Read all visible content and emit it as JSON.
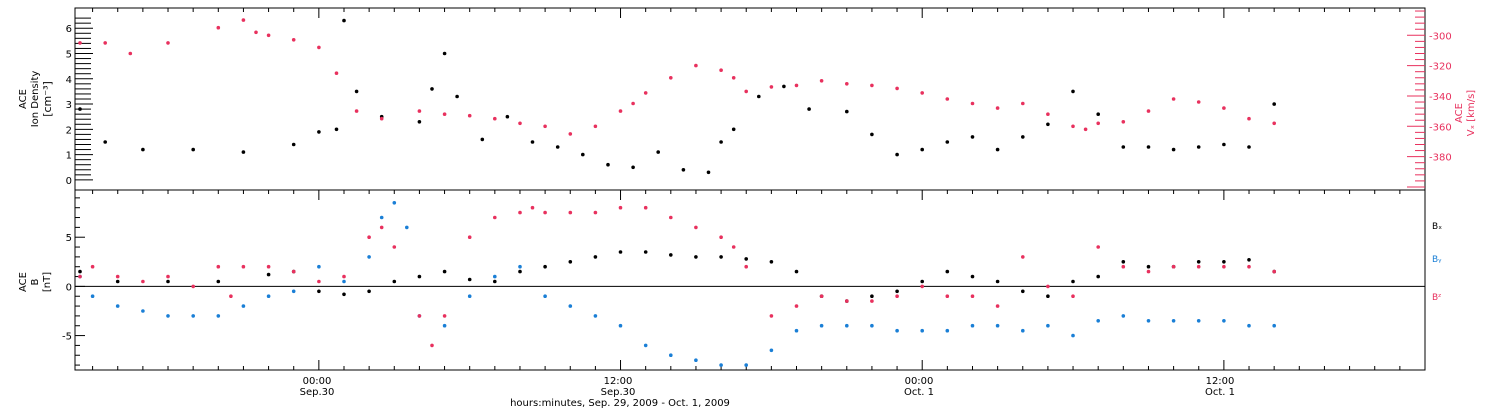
{
  "colors": {
    "density": "#000000",
    "speed": "#e8315e",
    "bx": "#000000",
    "by": "#1a7fd6",
    "bz": "#e8315e"
  },
  "x_axis": {
    "ticks": [
      {
        "time": "00:00",
        "date": "Sep.30"
      },
      {
        "time": "12:00",
        "date": "Sep.30"
      },
      {
        "time": "00:00",
        "date": "Oct. 1"
      },
      {
        "time": "12:00",
        "date": "Oct. 1"
      }
    ],
    "label": "hours:minutes, Sep. 29, 2009 - Oct.  1, 2009"
  },
  "chart_data": [
    {
      "type": "scatter",
      "panel": "top",
      "ylabel_left": [
        "ACE",
        "Ion Density",
        "[cm⁻³]"
      ],
      "ylabel_right": [
        "ACE",
        "Vₓ [km/s]"
      ],
      "xlim_hours": [
        -9.7,
        44
      ],
      "left_axis": {
        "ylim": [
          -0.4,
          6.8
        ],
        "ticks": [
          0,
          1,
          2,
          3,
          4,
          5,
          6
        ]
      },
      "right_axis": {
        "ylim": [
          -402,
          -282
        ],
        "ticks": [
          -300,
          -320,
          -340,
          -360,
          -380
        ]
      },
      "series": [
        {
          "axis": "left",
          "color": "#000000",
          "x": [
            -9.5,
            -8.5,
            -7,
            -5,
            -3,
            -1,
            0,
            0.7,
            1,
            1.5,
            2.5,
            4,
            4.5,
            5,
            5.5,
            6.5,
            7.5,
            8.5,
            9.5,
            10.5,
            11.5,
            12.5,
            13.5,
            14.5,
            15.5,
            16,
            16.5,
            17.5,
            18.5,
            19.5,
            21,
            22,
            23,
            24,
            25,
            26,
            27,
            28,
            29,
            30,
            31,
            32,
            33,
            34,
            35,
            36,
            37,
            38
          ],
          "y": [
            2.8,
            1.5,
            1.2,
            1.2,
            1.1,
            1.4,
            1.9,
            2.0,
            6.3,
            3.5,
            2.5,
            2.3,
            3.6,
            5.0,
            3.3,
            1.6,
            2.5,
            1.5,
            1.3,
            1.0,
            0.6,
            0.5,
            1.1,
            0.4,
            0.3,
            1.5,
            2.0,
            3.3,
            3.7,
            2.8,
            2.7,
            1.8,
            1.0,
            1.2,
            1.5,
            1.7,
            1.2,
            1.7,
            2.2,
            3.5,
            2.6,
            1.3,
            1.3,
            1.2,
            1.3,
            1.4,
            1.3,
            3.0
          ]
        },
        {
          "axis": "right",
          "color": "#e8315e",
          "x": [
            -9.5,
            -8.5,
            -7.5,
            -6,
            -4,
            -3,
            -2.5,
            -2,
            -1,
            0,
            0.7,
            1.5,
            2.5,
            4,
            5,
            6,
            7,
            8,
            9,
            10,
            11,
            12,
            12.5,
            13,
            14,
            15,
            16,
            16.5,
            17,
            18,
            19,
            20,
            21,
            22,
            23,
            24,
            25,
            26,
            27,
            28,
            29,
            30,
            30.5,
            31,
            32,
            33,
            34,
            35,
            36,
            37,
            38
          ],
          "y": [
            -305,
            -305,
            -312,
            -305,
            -295,
            -290,
            -298,
            -300,
            -303,
            -308,
            -325,
            -350,
            -355,
            -350,
            -352,
            -353,
            -355,
            -358,
            -360,
            -365,
            -360,
            -350,
            -345,
            -338,
            -328,
            -320,
            -323,
            -328,
            -337,
            -334,
            -333,
            -330,
            -332,
            -333,
            -335,
            -338,
            -342,
            -345,
            -348,
            -345,
            -352,
            -360,
            -362,
            -358,
            -357,
            -350,
            -342,
            -344,
            -348,
            -355,
            -358
          ]
        }
      ]
    },
    {
      "type": "scatter",
      "panel": "bottom",
      "ylabel": [
        "ACE",
        "B",
        "[nT]"
      ],
      "xlim_hours": [
        -9.7,
        44
      ],
      "ylim": [
        -8.5,
        9.8
      ],
      "yticks": [
        -5,
        0,
        5
      ],
      "zero_line": true,
      "legend": [
        "Bₓ",
        "Bᵧ",
        "Bᶻ"
      ],
      "series": [
        {
          "name": "Bₓ",
          "color": "#000000",
          "x": [
            -9.5,
            -8,
            -6,
            -4,
            -2,
            -1,
            0,
            1,
            2,
            3,
            4,
            5,
            6,
            7,
            8,
            9,
            10,
            11,
            12,
            13,
            14,
            15,
            16,
            17,
            18,
            19,
            20,
            21,
            22,
            23,
            24,
            25,
            26,
            27,
            28,
            29,
            30,
            31,
            32,
            33,
            34,
            35,
            36,
            37,
            38
          ],
          "y": [
            1.5,
            0.5,
            0.5,
            0.5,
            1.2,
            1.5,
            -0.5,
            -0.8,
            -0.5,
            0.5,
            1.0,
            1.5,
            0.7,
            0.5,
            1.5,
            2.0,
            2.5,
            3.0,
            3.5,
            3.5,
            3.2,
            3.0,
            3.0,
            2.8,
            2.5,
            1.5,
            -1.0,
            -1.5,
            -1.0,
            -0.5,
            0.5,
            1.5,
            1.0,
            0.5,
            -0.5,
            -1.0,
            0.5,
            1.0,
            2.5,
            2.0,
            2.0,
            2.5,
            2.5,
            2.7,
            1.5
          ]
        },
        {
          "name": "Bᵧ",
          "color": "#1a7fd6",
          "x": [
            -9.5,
            -9,
            -8,
            -7,
            -6,
            -5,
            -4,
            -3,
            -2,
            -1,
            0,
            1,
            2,
            2.5,
            3,
            3.5,
            4,
            5,
            6,
            7,
            8,
            9,
            10,
            11,
            12,
            13,
            14,
            15,
            16,
            17,
            18,
            19,
            20,
            21,
            22,
            23,
            24,
            25,
            26,
            27,
            28,
            29,
            30,
            31,
            32,
            33,
            34,
            35,
            36,
            37,
            38
          ],
          "y": [
            1.0,
            -1.0,
            -2.0,
            -2.5,
            -3.0,
            -3.0,
            -3.0,
            -2.0,
            -1.0,
            -0.5,
            2.0,
            0.5,
            3.0,
            7.0,
            8.5,
            6.0,
            -3.0,
            -4.0,
            -1.0,
            1.0,
            2.0,
            -1.0,
            -2.0,
            -3.0,
            -4.0,
            -6.0,
            -7.0,
            -7.5,
            -8.0,
            -8.0,
            -6.5,
            -4.5,
            -4.0,
            -4.0,
            -4.0,
            -4.5,
            -4.5,
            -4.5,
            -4.0,
            -4.0,
            -4.5,
            -4.0,
            -5.0,
            -3.5,
            -3.0,
            -3.5,
            -3.5,
            -3.5,
            -3.5,
            -4.0,
            -4.0
          ]
        },
        {
          "name": "Bᶻ",
          "color": "#e8315e",
          "x": [
            -9.5,
            -9,
            -8,
            -7,
            -6,
            -5,
            -4,
            -3.5,
            -3,
            -2,
            -1,
            0,
            1,
            2,
            2.5,
            3,
            4,
            4.5,
            5,
            6,
            7,
            8,
            8.5,
            9,
            10,
            11,
            12,
            13,
            14,
            15,
            16,
            16.5,
            17,
            18,
            19,
            20,
            21,
            22,
            23,
            24,
            25,
            26,
            27,
            28,
            29,
            30,
            31,
            32,
            33,
            34,
            35,
            36,
            37,
            38
          ],
          "y": [
            1.0,
            2.0,
            1.0,
            0.5,
            1.0,
            0.0,
            2.0,
            -1.0,
            2.0,
            2.0,
            1.5,
            0.5,
            1.0,
            5.0,
            6.0,
            4.0,
            -3.0,
            -6.0,
            -3.0,
            5.0,
            7.0,
            7.5,
            8.0,
            7.5,
            7.5,
            7.5,
            8.0,
            8.0,
            7.0,
            6.0,
            5.0,
            4.0,
            2.0,
            -3.0,
            -2.0,
            -1.0,
            -1.5,
            -1.5,
            -1.0,
            0.0,
            -1.0,
            -1.0,
            -2.0,
            3.0,
            0.0,
            -1.0,
            4.0,
            2.0,
            1.5,
            2.0,
            2.0,
            2.0,
            2.0,
            1.5
          ]
        }
      ]
    }
  ]
}
